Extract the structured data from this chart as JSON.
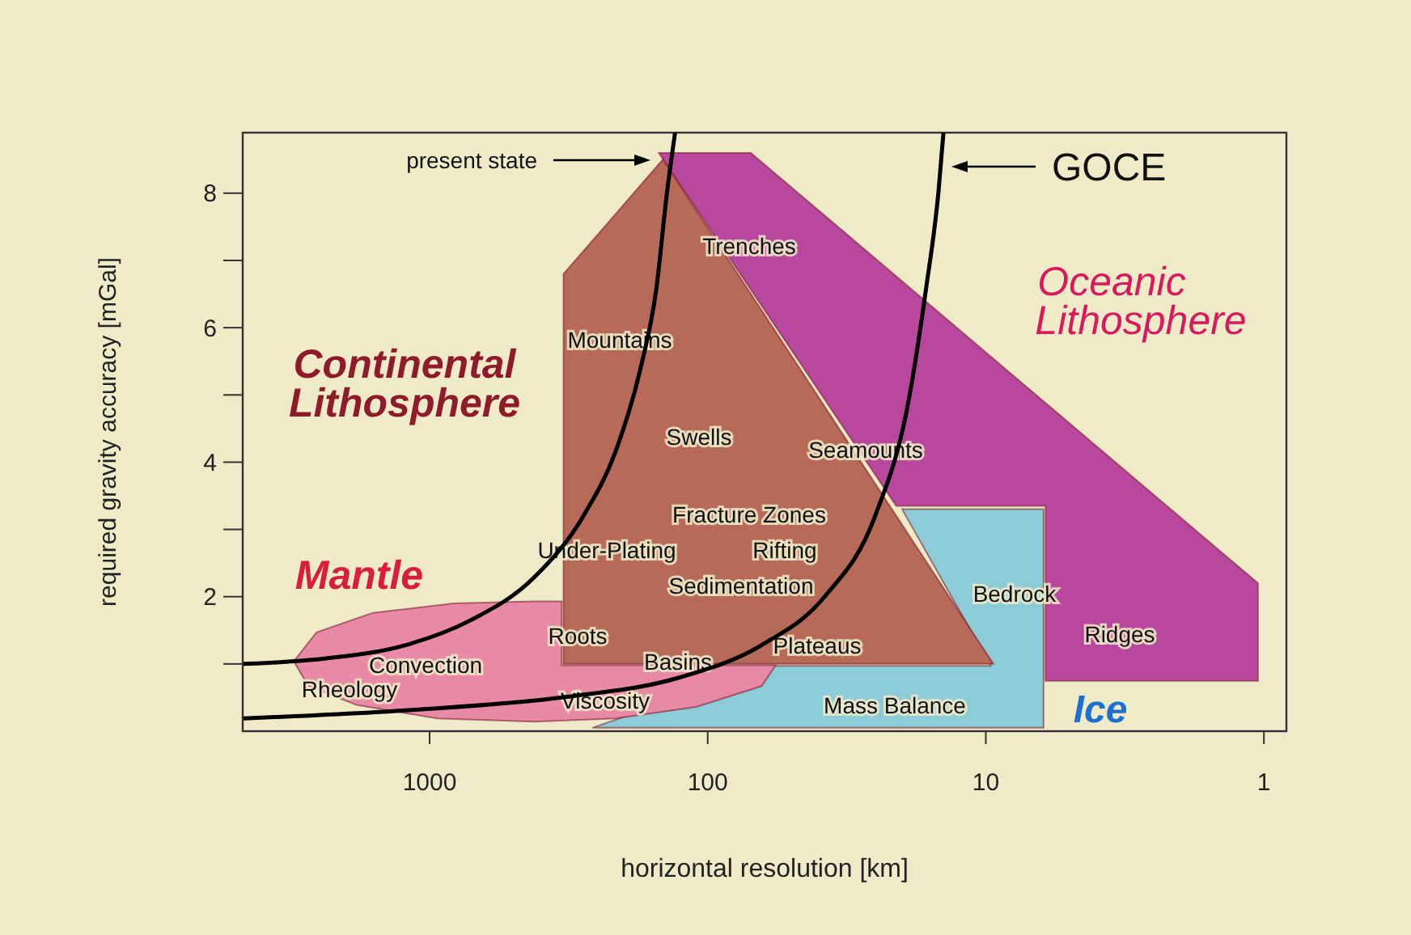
{
  "chart_data": {
    "type": "area",
    "xlabel": "horizontal resolution [km]",
    "ylabel": "required gravity accuracy [mGal]",
    "log": "x",
    "xlim": [
      4700,
      0.83
    ],
    "xticks": [
      1000,
      100,
      10,
      1
    ],
    "ylim": [
      0,
      8.9
    ],
    "yticks": [
      {
        "value": 1,
        "label": null
      },
      2,
      {
        "value": 3,
        "label": null
      },
      4,
      {
        "value": 5,
        "label": null
      },
      6,
      {
        "value": 7,
        "label": null
      },
      8
    ],
    "series": [
      {
        "color": "#b8489e",
        "x": [
          150,
          70,
          1.05,
          1.05,
          6.1,
          6.1,
          21
        ],
        "values": [
          8.6,
          8.6,
          2.2,
          0.75,
          0.75,
          3.35,
          3.35
        ]
      },
      {
        "color": "#8ccbd8",
        "x": [
          20,
          6.2,
          6.2,
          260,
          60,
          9.6
        ],
        "values": [
          3.3,
          3.3,
          0.05,
          0.05,
          0.97,
          0.97
        ]
      },
      {
        "color": "#e889a6",
        "x": [
          3080,
          2550,
          1600,
          820,
          420,
          335,
          335,
          57,
          64,
          110,
          214,
          420,
          940,
          1830,
          2730
        ],
        "values": [
          1.04,
          1.47,
          1.76,
          1.9,
          1.93,
          1.93,
          0.98,
          0.98,
          0.67,
          0.36,
          0.19,
          0.14,
          0.19,
          0.39,
          0.67
        ]
      },
      {
        "color": "#b66a57",
        "x": [
          330,
          145,
          9.4,
          330
        ],
        "values": [
          6.8,
          8.5,
          1,
          1
        ]
      },
      {
        "type": "line",
        "color": "#000000",
        "x": [
          4670,
          2390,
          1220,
          720,
          420,
          280,
          214,
          175,
          153,
          140,
          131
        ],
        "values": [
          1.0,
          1.08,
          1.28,
          1.64,
          2.29,
          3.2,
          4.17,
          5.37,
          6.58,
          8.02,
          8.9
        ]
      },
      {
        "type": "line",
        "color": "#000000",
        "x": [
          4670,
          1220,
          321,
          126,
          64,
          38,
          25,
          19,
          16.4,
          14.8,
          14.2
        ],
        "values": [
          0.19,
          0.31,
          0.51,
          0.8,
          1.28,
          2.0,
          3.2,
          4.89,
          6.58,
          8.02,
          8.9
        ]
      }
    ],
    "annotations": [
      "Continental Lithosphere",
      "Oceanic Lithosphere",
      "Mantle",
      "Ice",
      "Trenches",
      "Mountains",
      "Swells",
      "Seamounts",
      "Fracture Zones",
      "Under-Plating",
      "Rifting",
      "Sedimentation",
      "Bedrock",
      "Ridges",
      "Roots",
      "Plateaus",
      "Basins",
      "Convection",
      "Rheology",
      "Viscosity",
      "Mass Balance",
      "present state",
      "GOCE"
    ]
  }
}
